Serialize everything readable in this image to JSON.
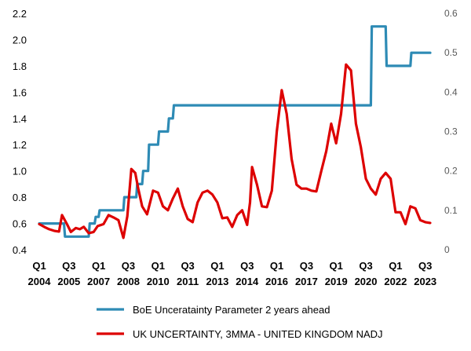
{
  "chart_data": {
    "type": "line",
    "title": "",
    "xlabel": "",
    "ylabel_left": "",
    "ylabel_right": "",
    "x_ticks": [
      {
        "q": "Q1",
        "y": "2004",
        "x": 2004.0
      },
      {
        "q": "Q3",
        "y": "2005",
        "x": 2005.5
      },
      {
        "q": "Q1",
        "y": "2007",
        "x": 2007.0
      },
      {
        "q": "Q3",
        "y": "2008",
        "x": 2008.5
      },
      {
        "q": "Q1",
        "y": "2010",
        "x": 2010.0
      },
      {
        "q": "Q3",
        "y": "2011",
        "x": 2011.5
      },
      {
        "q": "Q1",
        "y": "2013",
        "x": 2013.0
      },
      {
        "q": "Q3",
        "y": "2014",
        "x": 2014.5
      },
      {
        "q": "Q1",
        "y": "2016",
        "x": 2016.0
      },
      {
        "q": "Q3",
        "y": "2017",
        "x": 2017.5
      },
      {
        "q": "Q1",
        "y": "2019",
        "x": 2019.0
      },
      {
        "q": "Q3",
        "y": "2020",
        "x": 2020.5
      },
      {
        "q": "Q1",
        "y": "2022",
        "x": 2022.0
      },
      {
        "q": "Q3",
        "y": "2023",
        "x": 2023.5
      }
    ],
    "xlim": [
      2004.0,
      2023.75
    ],
    "y_left": {
      "ylim": [
        0.4,
        2.2
      ],
      "ticks": [
        "0.4",
        "0.6",
        "0.8",
        "1.0",
        "1.2",
        "1.4",
        "1.6",
        "1.8",
        "2.0",
        "2.2"
      ]
    },
    "y_right": {
      "ylim": [
        0,
        0.6
      ],
      "ticks": [
        "0",
        "0.1",
        "0.2",
        "0.3",
        "0.4",
        "0.5",
        "0.6"
      ]
    },
    "grid": false,
    "legend_placement": "bottom",
    "series": [
      {
        "name": "BoE  Unceratainty Parameter 2 years ahead",
        "axis": "left",
        "color": "#2e8bb5",
        "x": [
          2004.0,
          2005.25,
          2005.3,
          2006.5,
          2006.55,
          2006.8,
          2006.85,
          2007.0,
          2007.05,
          2008.25,
          2008.3,
          2008.9,
          2008.95,
          2009.2,
          2009.25,
          2009.5,
          2009.55,
          2010.0,
          2010.05,
          2010.5,
          2010.55,
          2010.75,
          2010.8,
          2020.75,
          2020.8,
          2021.5,
          2021.55,
          2022.75,
          2022.8,
          2023.75
        ],
        "values": [
          0.6,
          0.6,
          0.5,
          0.5,
          0.6,
          0.6,
          0.65,
          0.65,
          0.7,
          0.7,
          0.8,
          0.8,
          0.9,
          0.9,
          1.0,
          1.0,
          1.2,
          1.2,
          1.3,
          1.3,
          1.4,
          1.4,
          1.5,
          1.5,
          2.1,
          2.1,
          1.8,
          1.8,
          1.9,
          1.9
        ]
      },
      {
        "name": "UK UNCERTAINTY, 3MMA - UNITED KINGDOM NADJ",
        "axis": "right",
        "color": "#dd0000",
        "x": [
          2004.0,
          2004.25,
          2004.5,
          2004.75,
          2005.0,
          2005.15,
          2005.4,
          2005.6,
          2005.85,
          2006.05,
          2006.25,
          2006.5,
          2006.75,
          2006.95,
          2007.25,
          2007.5,
          2007.75,
          2008.0,
          2008.25,
          2008.45,
          2008.65,
          2008.85,
          2009.0,
          2009.2,
          2009.45,
          2009.6,
          2009.75,
          2010.0,
          2010.25,
          2010.5,
          2010.75,
          2011.0,
          2011.25,
          2011.5,
          2011.75,
          2012.0,
          2012.25,
          2012.5,
          2012.75,
          2013.0,
          2013.25,
          2013.5,
          2013.75,
          2014.0,
          2014.25,
          2014.5,
          2014.65,
          2014.75,
          2015.0,
          2015.25,
          2015.5,
          2015.75,
          2016.0,
          2016.25,
          2016.5,
          2016.75,
          2017.0,
          2017.25,
          2017.5,
          2017.75,
          2018.0,
          2018.25,
          2018.5,
          2018.75,
          2019.0,
          2019.25,
          2019.5,
          2019.75,
          2020.0,
          2020.25,
          2020.5,
          2020.75,
          2021.0,
          2021.25,
          2021.5,
          2021.75,
          2022.0,
          2022.25,
          2022.5,
          2022.75,
          2023.0,
          2023.25,
          2023.5,
          2023.75
        ],
        "values": [
          0.065,
          0.058,
          0.052,
          0.048,
          0.046,
          0.088,
          0.065,
          0.045,
          0.055,
          0.052,
          0.058,
          0.042,
          0.045,
          0.06,
          0.065,
          0.088,
          0.082,
          0.075,
          0.03,
          0.085,
          0.205,
          0.195,
          0.155,
          0.11,
          0.09,
          0.12,
          0.15,
          0.145,
          0.11,
          0.1,
          0.13,
          0.155,
          0.11,
          0.078,
          0.07,
          0.12,
          0.145,
          0.15,
          0.14,
          0.12,
          0.08,
          0.082,
          0.058,
          0.088,
          0.1,
          0.063,
          0.12,
          0.21,
          0.165,
          0.11,
          0.108,
          0.15,
          0.3,
          0.405,
          0.345,
          0.23,
          0.165,
          0.155,
          0.155,
          0.15,
          0.148,
          0.2,
          0.25,
          0.32,
          0.27,
          0.345,
          0.47,
          0.455,
          0.32,
          0.26,
          0.18,
          0.155,
          0.14,
          0.18,
          0.195,
          0.18,
          0.095,
          0.095,
          0.065,
          0.11,
          0.105,
          0.075,
          0.07,
          0.068
        ]
      }
    ]
  }
}
